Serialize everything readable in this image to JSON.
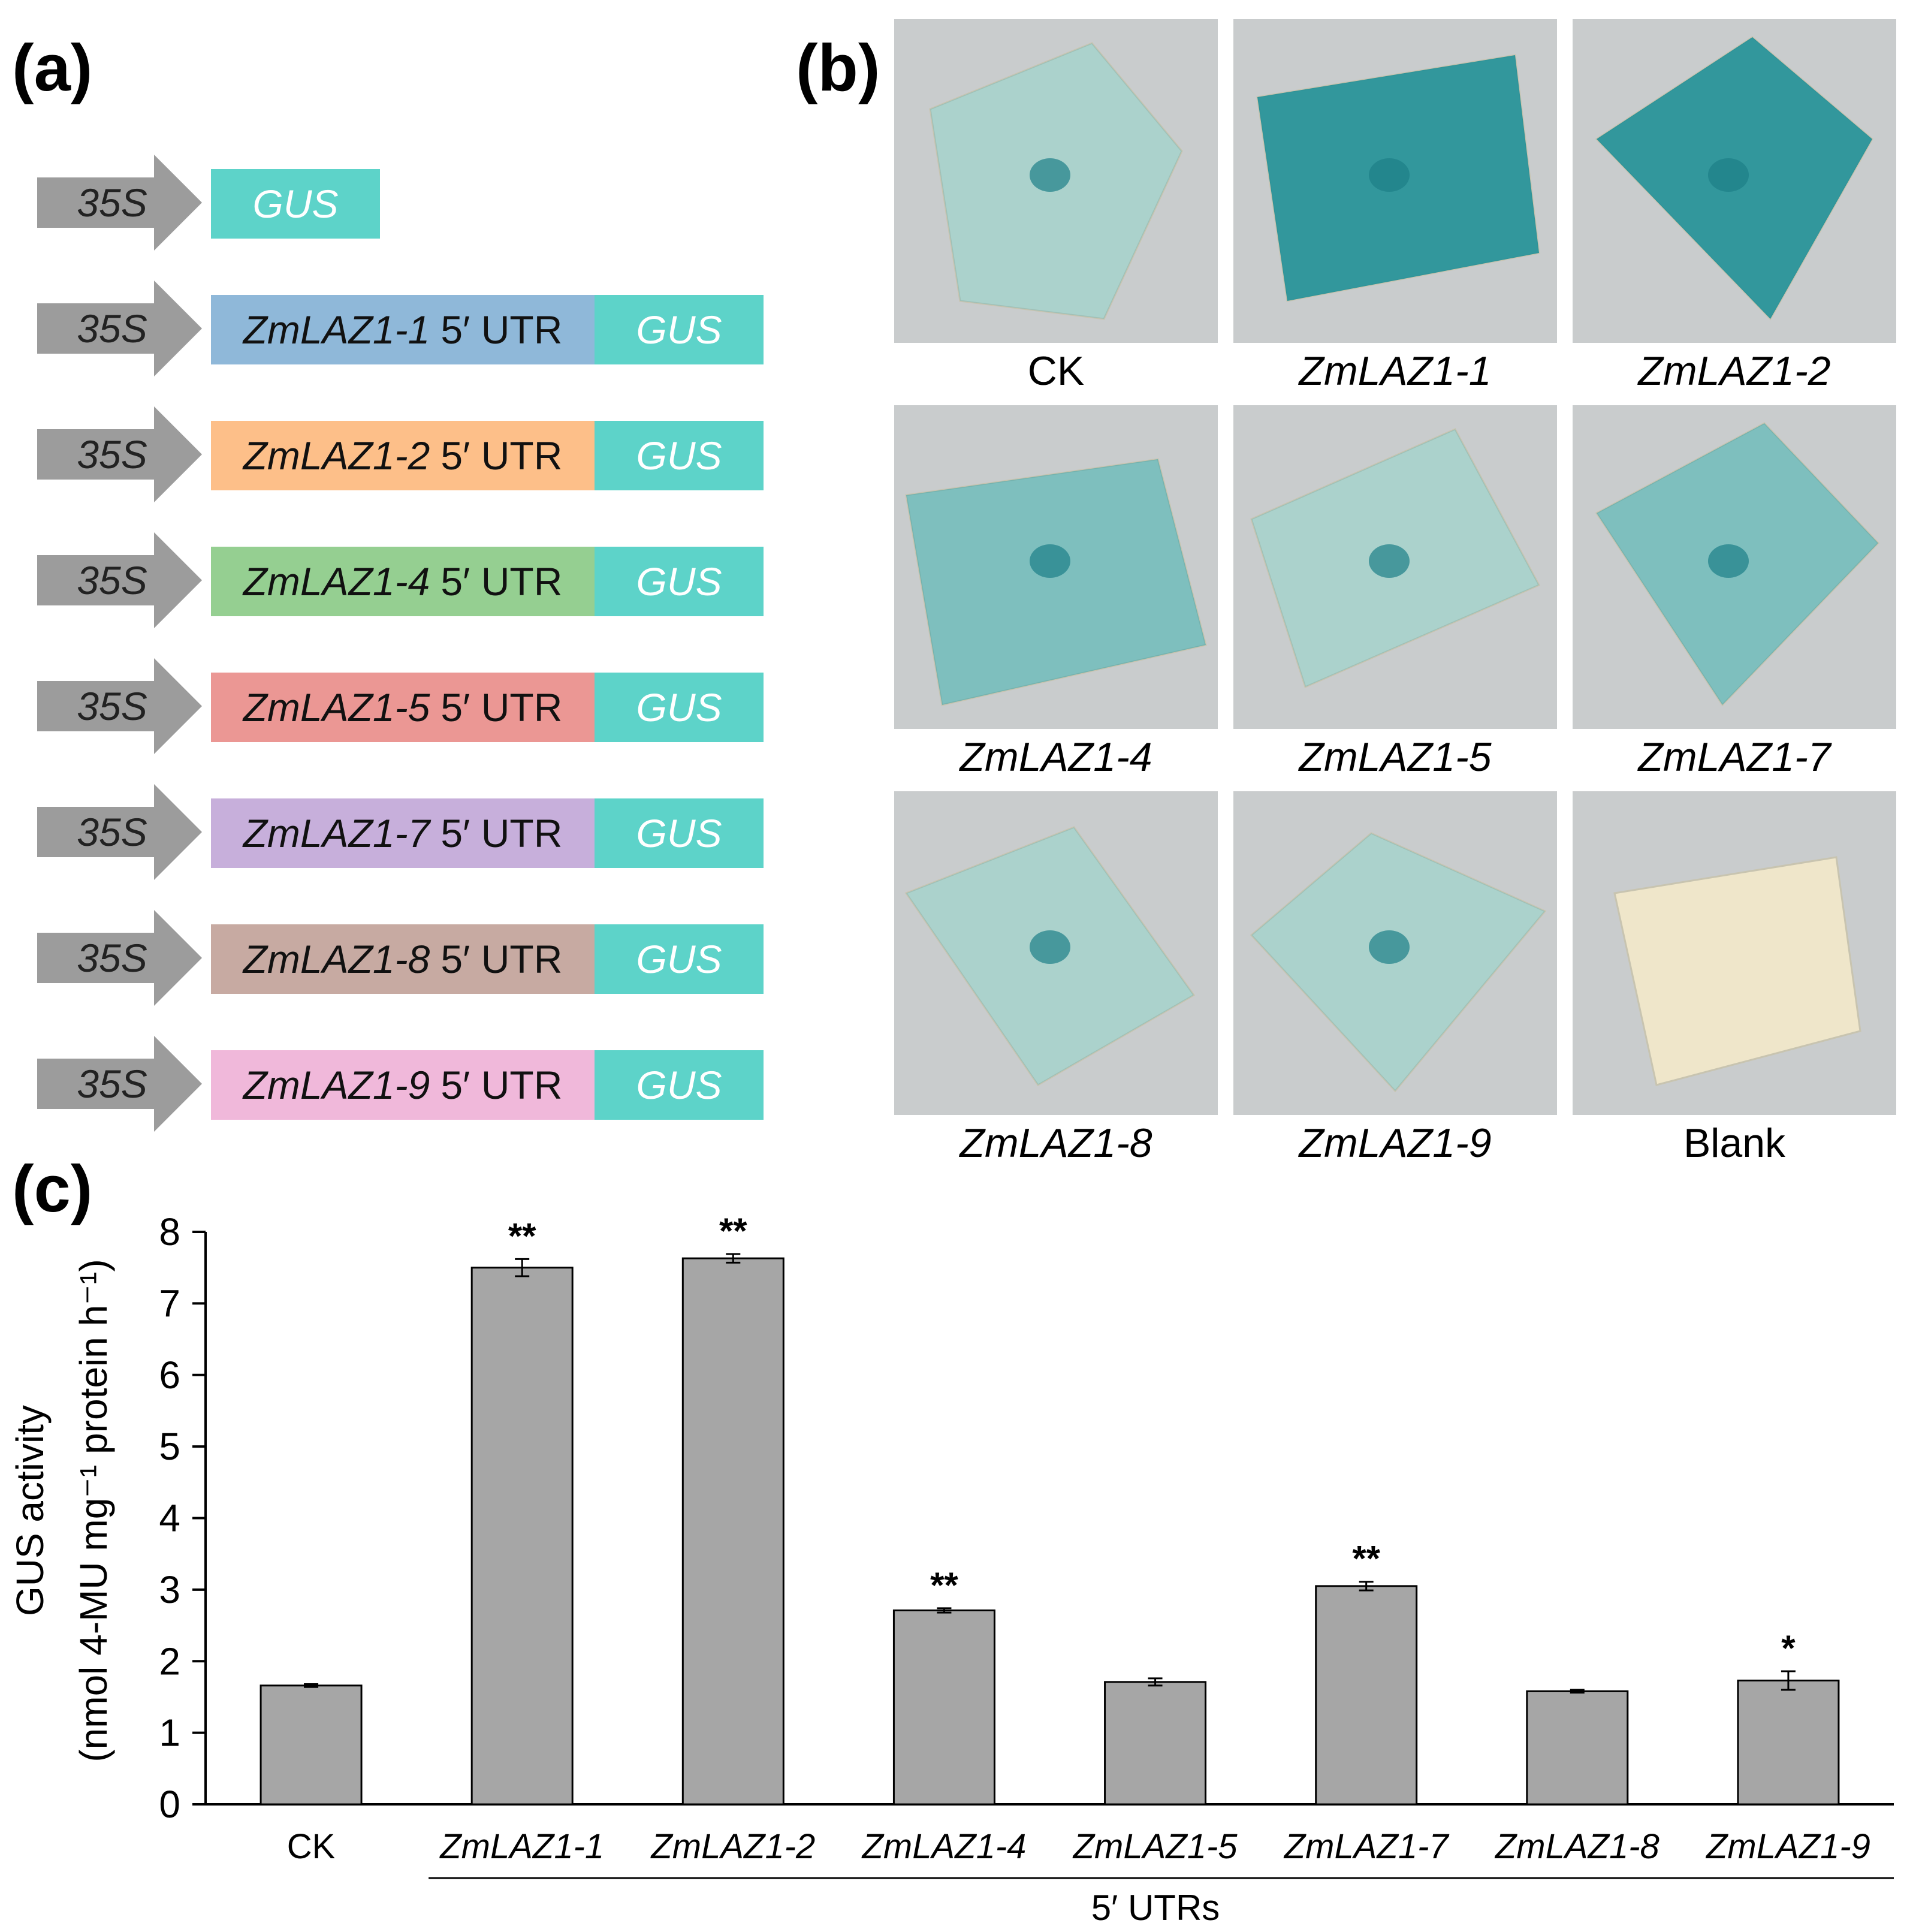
{
  "panels": {
    "a": "(a)",
    "b": "(b)",
    "c": "(c)"
  },
  "colors": {
    "gus": "#5dd3c9",
    "arrow": "#9c9c9c",
    "bar": "#a6a6a6",
    "utr": [
      "#8fb8d9",
      "#fdbf89",
      "#95cf91",
      "#eb9794",
      "#c7afdb",
      "#c7aaa2",
      "#f0b8da"
    ]
  },
  "constructs": {
    "promoter": "35S",
    "reporter": "GUS",
    "utr_suffix": "5′ UTR",
    "items": [
      {
        "gene": "ZmLAZ1-1"
      },
      {
        "gene": "ZmLAZ1-2"
      },
      {
        "gene": "ZmLAZ1-4"
      },
      {
        "gene": "ZmLAZ1-5"
      },
      {
        "gene": "ZmLAZ1-7"
      },
      {
        "gene": "ZmLAZ1-8"
      },
      {
        "gene": "ZmLAZ1-9"
      }
    ]
  },
  "photos": [
    {
      "label": "CK",
      "italic": false,
      "stain": "light"
    },
    {
      "label": "ZmLAZ1-1",
      "italic": true,
      "stain": "strong"
    },
    {
      "label": "ZmLAZ1-2",
      "italic": true,
      "stain": "strong"
    },
    {
      "label": "ZmLAZ1-4",
      "italic": true,
      "stain": "medium"
    },
    {
      "label": "ZmLAZ1-5",
      "italic": true,
      "stain": "light"
    },
    {
      "label": "ZmLAZ1-7",
      "italic": true,
      "stain": "medium"
    },
    {
      "label": "ZmLAZ1-8",
      "italic": true,
      "stain": "light"
    },
    {
      "label": "ZmLAZ1-9",
      "italic": true,
      "stain": "light"
    },
    {
      "label": "Blank",
      "italic": false,
      "stain": "none"
    }
  ],
  "chart_data": {
    "type": "bar",
    "categories": [
      "CK",
      "ZmLAZ1-1",
      "ZmLAZ1-2",
      "ZmLAZ1-4",
      "ZmLAZ1-5",
      "ZmLAZ1-7",
      "ZmLAZ1-8",
      "ZmLAZ1-9"
    ],
    "italic_categories": [
      false,
      true,
      true,
      true,
      true,
      true,
      true,
      true
    ],
    "values": [
      1.66,
      7.5,
      7.63,
      2.71,
      1.71,
      3.05,
      1.58,
      1.73
    ],
    "errors": [
      0.02,
      0.12,
      0.06,
      0.03,
      0.05,
      0.06,
      0.02,
      0.13
    ],
    "significance": [
      "",
      "**",
      "**",
      "**",
      "",
      "**",
      "",
      "*"
    ],
    "ylabel_line1": "GUS activity",
    "ylabel_line2": "(nmol  4-MU mg⁻¹ protein h⁻¹)",
    "xlabel": "5′ UTRs",
    "ylim": [
      0,
      8
    ],
    "yticks": [
      0,
      1,
      2,
      3,
      4,
      5,
      6,
      7,
      8
    ]
  }
}
